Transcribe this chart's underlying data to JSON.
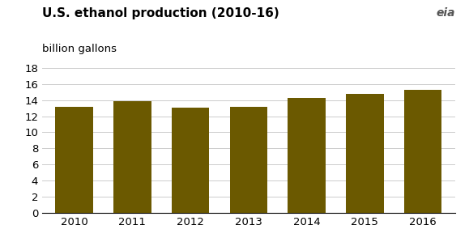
{
  "categories": [
    "2010",
    "2011",
    "2012",
    "2013",
    "2014",
    "2015",
    "2016"
  ],
  "values": [
    13.2,
    13.9,
    13.1,
    13.2,
    14.3,
    14.8,
    15.3
  ],
  "bar_color": "#6b5900",
  "title": "U.S. ethanol production (2010-16)",
  "ylabel": "billion gallons",
  "ylim": [
    0,
    18
  ],
  "yticks": [
    0,
    2,
    4,
    6,
    8,
    10,
    12,
    14,
    16,
    18
  ],
  "background_color": "#ffffff",
  "grid_color": "#cccccc",
  "title_fontsize": 11,
  "label_fontsize": 9.5,
  "tick_fontsize": 9.5
}
